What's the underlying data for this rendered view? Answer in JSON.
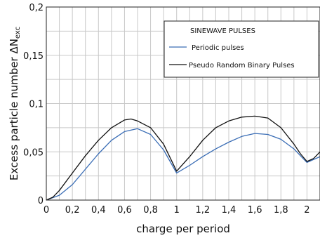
{
  "chart_data": {
    "type": "line",
    "title": "",
    "xlabel": "charge per period",
    "ylabel": "Excess particle number ΔN",
    "ylabel_sub": "exc",
    "xlim": [
      0,
      2.1
    ],
    "ylim": [
      0,
      0.2
    ],
    "x_ticks": [
      "0",
      "0,2",
      "0,4",
      "0,6",
      "0,8",
      "1",
      "1,2",
      "1,4",
      "1,6",
      "1,8",
      "2"
    ],
    "y_ticks": [
      "0",
      "0,05",
      "0,1",
      "0,15",
      "0,2"
    ],
    "grid": true,
    "legend_position": "top-right",
    "legend_title": "SINEWAVE PULSES",
    "series": [
      {
        "name": "Periodic pulses",
        "color": "#3a6db5",
        "x": [
          0,
          0.1,
          0.2,
          0.3,
          0.4,
          0.5,
          0.6,
          0.7,
          0.8,
          0.9,
          1.0,
          1.1,
          1.2,
          1.3,
          1.4,
          1.5,
          1.6,
          1.7,
          1.8,
          1.9,
          1.95,
          2.0,
          2.05,
          2.1
        ],
        "y": [
          0,
          0.005,
          0.016,
          0.032,
          0.048,
          0.062,
          0.071,
          0.074,
          0.068,
          0.052,
          0.028,
          0.036,
          0.045,
          0.053,
          0.06,
          0.066,
          0.069,
          0.068,
          0.063,
          0.053,
          0.046,
          0.039,
          0.042,
          0.045
        ]
      },
      {
        "name": "Pseudo Random Binary Pulses",
        "color": "#111111",
        "x": [
          0,
          0.05,
          0.1,
          0.2,
          0.3,
          0.4,
          0.5,
          0.6,
          0.65,
          0.7,
          0.8,
          0.9,
          1.0,
          1.1,
          1.2,
          1.3,
          1.4,
          1.5,
          1.6,
          1.7,
          1.8,
          1.9,
          1.95,
          2.0,
          2.05,
          2.1
        ],
        "y": [
          0,
          0.003,
          0.01,
          0.028,
          0.046,
          0.062,
          0.075,
          0.083,
          0.084,
          0.082,
          0.075,
          0.058,
          0.03,
          0.045,
          0.062,
          0.075,
          0.082,
          0.086,
          0.087,
          0.085,
          0.075,
          0.058,
          0.048,
          0.04,
          0.043,
          0.05
        ]
      }
    ]
  }
}
